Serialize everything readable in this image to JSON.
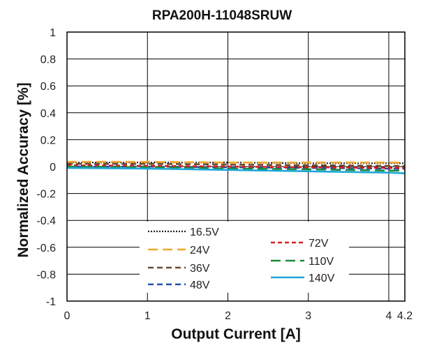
{
  "chart_data": {
    "type": "line",
    "title": "RPA200H-11048SRUW",
    "xlabel": "Output Current [A]",
    "ylabel": "Normalized Accuracy [%]",
    "xlim": [
      0,
      4.2
    ],
    "ylim": [
      -1,
      1
    ],
    "x_ticks": [
      0,
      1,
      2,
      3,
      4,
      4.2
    ],
    "x_tick_labels": [
      "0",
      "1",
      "2",
      "3",
      "4",
      "4.2"
    ],
    "y_ticks": [
      -1,
      -0.8,
      -0.6,
      -0.4,
      -0.2,
      0,
      0.2,
      0.4,
      0.6,
      0.8,
      1
    ],
    "y_tick_labels": [
      "-1",
      "-0.8",
      "-0.6",
      "-0.4",
      "-0.2",
      "0",
      "0.2",
      "0.4",
      "0.6",
      "0.8",
      "1"
    ],
    "grid": true,
    "legend_placement": "bottom-center",
    "series": [
      {
        "name": "16.5V",
        "color": "#222222",
        "style": "dotted",
        "x": [
          0,
          1,
          2,
          3,
          4,
          4.2
        ],
        "y": [
          0.03,
          0.03,
          0.03,
          0.025,
          0.025,
          0.025
        ]
      },
      {
        "name": "24V",
        "color": "#f0a830",
        "style": "longdash",
        "x": [
          0,
          1,
          2,
          3,
          4,
          4.2
        ],
        "y": [
          0.035,
          0.035,
          0.03,
          0.03,
          0.03,
          0.03
        ]
      },
      {
        "name": "36V",
        "color": "#6b4a2f",
        "style": "dash",
        "x": [
          0,
          1,
          2,
          3,
          4,
          4.2
        ],
        "y": [
          0.02,
          0.02,
          0.015,
          0.01,
          0.005,
          0.005
        ]
      },
      {
        "name": "48V",
        "color": "#1f4fa8",
        "style": "dash",
        "x": [
          0,
          1,
          2,
          3,
          4,
          4.2
        ],
        "y": [
          0.0,
          0.0,
          -0.005,
          -0.01,
          -0.015,
          -0.015
        ]
      },
      {
        "name": "72V",
        "color": "#d42020",
        "style": "shortdash",
        "x": [
          0,
          1,
          2,
          3,
          4,
          4.2
        ],
        "y": [
          0.01,
          0.005,
          0.0,
          -0.005,
          -0.01,
          -0.01
        ]
      },
      {
        "name": "110V",
        "color": "#1a8a3c",
        "style": "longdash",
        "x": [
          0,
          1,
          2,
          3,
          4,
          4.2
        ],
        "y": [
          0.0,
          -0.005,
          -0.015,
          -0.02,
          -0.03,
          -0.03
        ]
      },
      {
        "name": "140V",
        "color": "#1ea7d8",
        "style": "solid",
        "x": [
          0,
          1,
          2,
          3,
          4,
          4.2
        ],
        "y": [
          -0.01,
          -0.015,
          -0.025,
          -0.035,
          -0.045,
          -0.05
        ]
      }
    ]
  }
}
